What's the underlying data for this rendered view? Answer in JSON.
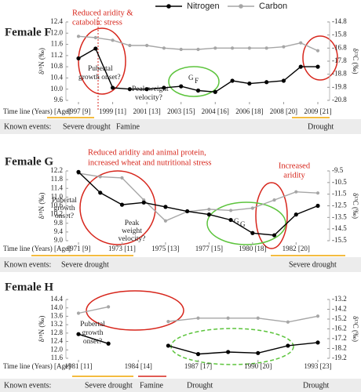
{
  "chart_data": [
    {
      "type": "line",
      "title": "Female F",
      "y_label": "δ¹⁵N (‰)",
      "y2_label": "δ¹³C (‰)",
      "x_label": "Time line (Years) [Age]",
      "categories": [
        "1997 [9]",
        null,
        "1999 [11]",
        null,
        "2001 [13]",
        null,
        "2003 [15]",
        null,
        "2004 [16]",
        null,
        "2006 [18]",
        null,
        "2008 [20]",
        null,
        "2009 [21]"
      ],
      "series": [
        {
          "name": "Nitrogen",
          "color": "#000000",
          "values": [
            11.1,
            11.45,
            10.05,
            10.0,
            10.0,
            10.05,
            10.1,
            9.95,
            9.9,
            10.3,
            10.2,
            10.25,
            10.3,
            10.8,
            10.8
          ]
        },
        {
          "name": "Carbon",
          "color": "#a6a6a6",
          "axis": "y2",
          "values": [
            -15.9,
            -16.0,
            -16.2,
            -16.6,
            -16.6,
            -16.8,
            -16.9,
            -16.9,
            -16.8,
            -16.8,
            -16.8,
            -16.8,
            -16.7,
            -16.4,
            -17.0
          ]
        }
      ],
      "ylim": [
        9.6,
        12.4
      ],
      "yticks": [
        9.6,
        {
          "value": 10,
          "label": "10.0"
        },
        10.4,
        10.8,
        11.2,
        11.6,
        {
          "value": 12,
          "label": "12.0"
        },
        12.4
      ],
      "y2lim": [
        -20.8,
        -14.8
      ],
      "y2ticks": [
        -20.8,
        -19.8,
        -18.8,
        -17.8,
        -16.8,
        -15.8,
        -14.8
      ],
      "annotations": [
        "Reduced aridity &",
        "catabolic stress",
        "Pubertal",
        "growth onset?",
        "Peak weight",
        "velocity?"
      ],
      "group_label": {
        "main": "G",
        "sub": "F"
      },
      "events_label": "Known events:",
      "events": [
        {
          "text": "Severe drought",
          "color": "#f0a500"
        },
        {
          "text": "Famine",
          "color": "#d7261c"
        },
        {
          "text": "Drought",
          "color": "#f0a500"
        }
      ]
    },
    {
      "type": "line",
      "title": "Female G",
      "y_label": "δ¹⁵N (‰)",
      "y2_label": "δ¹³C (‰)",
      "x_label": "Time line (Years) [Age]",
      "categories": [
        "1971 [9]",
        null,
        "1973 [11]",
        null,
        "1975 [13]",
        null,
        "1977 [15]",
        null,
        "1980 [18]",
        null,
        "1982 [20]",
        null
      ],
      "series": [
        {
          "color": "#000000",
          "values": [
            12.15,
            11.2,
            10.65,
            10.75,
            10.55,
            10.35,
            10.2,
            9.95,
            9.35,
            9.25,
            10.2,
            10.6
          ]
        },
        {
          "color": "#a6a6a6",
          "axis": "y2",
          "values": [
            -9.7,
            -10.0,
            -10.1,
            -12.0,
            -13.8,
            -13.0,
            -12.8,
            -12.9,
            -12.7,
            -12.0,
            -11.3,
            -11.4
          ]
        }
      ],
      "ylim": [
        9,
        12.2
      ],
      "yticks": [
        {
          "value": 9,
          "label": "9.0"
        },
        9.4,
        9.8,
        10.2,
        10.6,
        {
          "value": 11,
          "label": "11.0"
        },
        11.4,
        11.8,
        12.2
      ],
      "y2lim": [
        -15.5,
        -9.5
      ],
      "y2ticks": [
        -15.5,
        -14.5,
        -13.5,
        -12.5,
        -11.5,
        -10.5,
        -9.5
      ],
      "annotations": [
        "Reduced aridity and animal protein,",
        "increased wheat and nutritional stress",
        "Increased",
        "aridity",
        "Pubertal",
        "growth",
        "onset?",
        "Peak",
        "weight",
        "velocity?"
      ],
      "group_label": {
        "main": "G",
        "sub": "G"
      },
      "events_label": "Known events:",
      "events": [
        {
          "text": "Severe drought",
          "color": "#f0a500"
        },
        {
          "text": "Severe drought",
          "color": "#f0a500"
        }
      ]
    },
    {
      "type": "line",
      "title": "Female H",
      "y_label": "δ¹⁵N (‰)",
      "y2_label": "δ¹³C (‰)",
      "x_label": "Time line (Years) [Age]",
      "categories": [
        "1981 [11]",
        null,
        "1984 [14]",
        null,
        "1987 [17]",
        null,
        "1990 [20]",
        null,
        "1993 [23]"
      ],
      "series": [
        {
          "color": "#000000",
          "values": [
            12.75,
            12.3,
            null,
            12.2,
            11.8,
            11.9,
            11.85,
            12.2,
            12.35
          ]
        },
        {
          "color": "#a6a6a6",
          "axis": "y2",
          "values": [
            -14.6,
            -13.95,
            null,
            -15.45,
            -15.1,
            -15.1,
            -15.1,
            -15.5,
            -14.9
          ]
        }
      ],
      "ylim": [
        11.6,
        14.4
      ],
      "yticks": [
        11.6,
        {
          "value": 12,
          "label": "12.0"
        },
        12.4,
        12.8,
        13.2,
        13.6,
        {
          "value": 14,
          "label": "14.0"
        },
        14.4
      ],
      "y2lim": [
        -19.2,
        -13.2
      ],
      "y2ticks": [
        -19.2,
        -18.2,
        -17.2,
        -16.2,
        -15.2,
        -14.2,
        -13.2
      ],
      "annotations": [
        "Pubertal",
        "growth",
        "onset?"
      ],
      "events_label": "Known events:",
      "events": [
        {
          "text": "Severe drought",
          "color": "#f0a500"
        },
        {
          "text": "Famine",
          "color": "#d7261c"
        },
        {
          "text": "Drought",
          "color": "#f0a500"
        },
        {
          "text": "Drought",
          "color": "#f0a500"
        }
      ]
    }
  ]
}
